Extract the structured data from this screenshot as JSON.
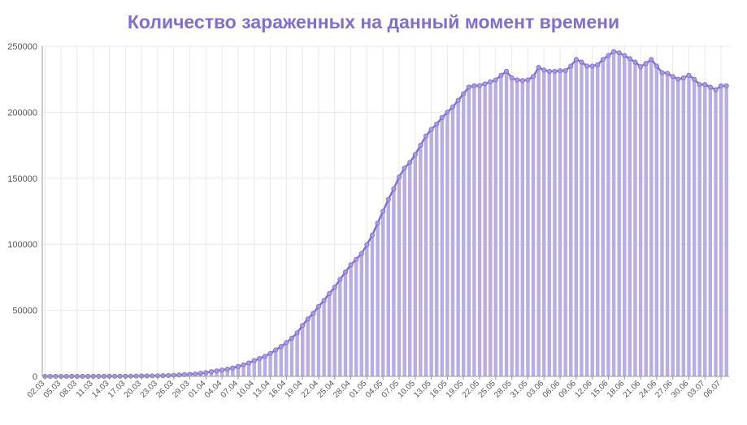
{
  "colors": {
    "title": "#7e6ed6",
    "bar": "#b7aee8",
    "bar_stroke": "#a397e0",
    "line": "#7f6fd4",
    "marker_fill": "#a79ce6",
    "grid": "#e8e8e8",
    "axis": "#999999"
  },
  "chart_data": {
    "type": "bar",
    "title": "Количество зараженных на данный момент времени",
    "xlabel": "",
    "ylabel": "",
    "ylim": [
      0,
      250000
    ],
    "yticks": [
      0,
      50000,
      100000,
      150000,
      200000,
      250000
    ],
    "ytick_labels": [
      "0",
      "50000",
      "100000",
      "150000",
      "200000",
      "250000"
    ],
    "grid": true,
    "overlay_line": true,
    "x_tick_labels": [
      "02.03",
      "05.03",
      "08.03",
      "11.03",
      "14.03",
      "17.03",
      "20.03",
      "23.03",
      "26.03",
      "29.03",
      "01.04",
      "04.04",
      "07.04",
      "10.04",
      "13.04",
      "16.04",
      "19.04",
      "22.04",
      "25.04",
      "28.04",
      "01.05",
      "04.05",
      "07.05",
      "10.05",
      "13.05",
      "16.05",
      "19.05",
      "22.05",
      "25.05",
      "28.05",
      "31.05",
      "03.06",
      "06.06",
      "09.06",
      "12.06",
      "15.06",
      "18.06",
      "21.06",
      "24.06",
      "27.06",
      "30.06",
      "03.07",
      "06.07"
    ],
    "series": [
      {
        "x": [
          "02.03",
          "03.03",
          "04.03",
          "05.03",
          "06.03",
          "07.03",
          "08.03",
          "09.03",
          "10.03",
          "11.03",
          "12.03",
          "13.03",
          "14.03",
          "15.03",
          "16.03",
          "17.03",
          "18.03",
          "19.03",
          "20.03",
          "21.03",
          "22.03",
          "23.03",
          "24.03",
          "25.03",
          "26.03",
          "27.03",
          "28.03",
          "29.03",
          "30.03",
          "31.03",
          "01.04",
          "02.04",
          "03.04",
          "04.04",
          "05.04",
          "06.04",
          "07.04",
          "08.04",
          "09.04",
          "10.04",
          "11.04",
          "12.04",
          "13.04",
          "14.04",
          "15.04",
          "16.04",
          "17.04",
          "18.04",
          "19.04",
          "20.04",
          "21.04",
          "22.04",
          "23.04",
          "24.04",
          "25.04",
          "26.04",
          "27.04",
          "28.04",
          "29.04",
          "30.04",
          "01.05",
          "02.05",
          "03.05",
          "04.05",
          "05.05",
          "06.05",
          "07.05",
          "08.05",
          "09.05",
          "10.05",
          "11.05",
          "12.05",
          "13.05",
          "14.05",
          "15.05",
          "16.05",
          "17.05",
          "18.05",
          "19.05",
          "20.05",
          "21.05",
          "22.05",
          "23.05",
          "24.05",
          "25.05",
          "26.05",
          "27.05",
          "28.05",
          "29.05",
          "30.05",
          "31.05",
          "01.06",
          "02.06",
          "03.06",
          "04.06",
          "05.06",
          "06.06",
          "07.06",
          "08.06",
          "09.06",
          "10.06",
          "11.06",
          "12.06",
          "13.06",
          "14.06",
          "15.06",
          "16.06",
          "17.06",
          "18.06",
          "19.06",
          "20.06",
          "21.06",
          "22.06",
          "23.06",
          "24.06",
          "25.06",
          "26.06",
          "27.06",
          "28.06",
          "29.06",
          "30.06",
          "01.07",
          "02.07",
          "03.07",
          "04.07",
          "05.07",
          "06.07",
          "07.07"
        ],
        "values": [
          3,
          3,
          3,
          3,
          4,
          10,
          15,
          17,
          20,
          28,
          34,
          45,
          59,
          63,
          90,
          114,
          147,
          199,
          253,
          306,
          367,
          438,
          495,
          658,
          840,
          1036,
          1264,
          1534,
          1836,
          2337,
          2777,
          3548,
          4149,
          4731,
          5389,
          6343,
          7497,
          8672,
          10131,
          11917,
          13512,
          15150,
          17357,
          20000,
          22600,
          25500,
          28900,
          32900,
          38500,
          43500,
          47700,
          52900,
          57500,
          62700,
          67600,
          73400,
          79000,
          84500,
          88600,
          93000,
          99700,
          107000,
          116000,
          125000,
          134000,
          142000,
          151000,
          157700,
          162000,
          168000,
          175000,
          182000,
          187000,
          191000,
          196000,
          200000,
          204000,
          209000,
          214000,
          219000,
          220000,
          220200,
          221500,
          223000,
          224500,
          228000,
          231000,
          226000,
          224500,
          224000,
          224500,
          227000,
          234000,
          232000,
          231000,
          231000,
          231500,
          231500,
          235000,
          240000,
          238000,
          235000,
          235000,
          236000,
          240000,
          243000,
          246000,
          245000,
          243000,
          240500,
          238000,
          234500,
          237000,
          240000,
          235000,
          230000,
          229500,
          227000,
          225000,
          226000,
          228000,
          225000,
          221000,
          221000,
          219000,
          217000,
          220000,
          220000
        ]
      }
    ]
  }
}
